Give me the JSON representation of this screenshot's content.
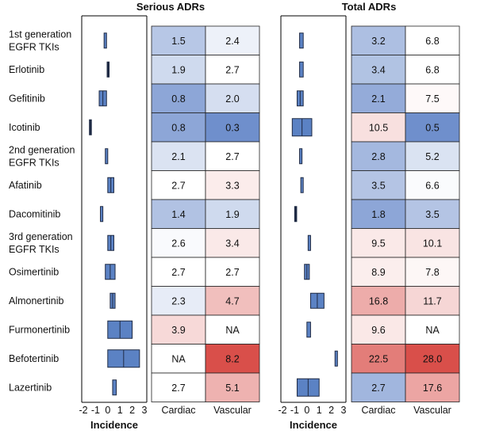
{
  "chart_data": {
    "type": "heatmap",
    "rows": [
      "1st generation\nEGFR TKIs",
      "Erlotinib",
      "Gefitinib",
      "Icotinib",
      "2nd generation\nEGFR TKIs",
      "Afatinib",
      "Dacomitinib",
      "3rd generation\nEGFR TKIs",
      "Osimertinib",
      "Almonertinib",
      "Furmonertinib",
      "Befotertinib",
      "Lazertinib"
    ],
    "panels": [
      {
        "title": "Serious ADRs",
        "columns": [
          "Cardiac",
          "Vascular"
        ],
        "values": [
          [
            "1.5",
            "2.4"
          ],
          [
            "1.9",
            "2.7"
          ],
          [
            "0.8",
            "2.0"
          ],
          [
            "0.8",
            "0.3"
          ],
          [
            "2.1",
            "2.7"
          ],
          [
            "2.7",
            "3.3"
          ],
          [
            "1.4",
            "1.9"
          ],
          [
            "2.6",
            "3.4"
          ],
          [
            "2.7",
            "2.7"
          ],
          [
            "2.3",
            "4.7"
          ],
          [
            "3.9",
            "NA"
          ],
          [
            "NA",
            "8.2"
          ],
          [
            "2.7",
            "5.1"
          ]
        ],
        "incidence": [
          [
            -0.3,
            -0.1
          ],
          [
            -0.05,
            0.05
          ],
          [
            -0.7,
            -0.1
          ],
          [
            -1.5,
            -1.4
          ],
          [
            -0.2,
            0.0
          ],
          [
            0.0,
            0.5
          ],
          [
            -0.6,
            -0.4
          ],
          [
            0.0,
            0.5
          ],
          [
            -0.2,
            0.6
          ],
          [
            0.2,
            0.6
          ],
          [
            0.0,
            2.0
          ],
          [
            0.0,
            2.6
          ],
          [
            0.4,
            0.7
          ]
        ],
        "xlabel": "Incidence",
        "xlim": [
          -2,
          3
        ],
        "xticks": [
          "-2",
          "-1",
          "0",
          "1",
          "2",
          "3"
        ]
      },
      {
        "title": "Total ADRs",
        "columns": [
          "Cardiac",
          "Vascular"
        ],
        "values": [
          [
            "3.2",
            "6.8"
          ],
          [
            "3.4",
            "6.8"
          ],
          [
            "2.1",
            "7.5"
          ],
          [
            "10.5",
            "0.5"
          ],
          [
            "2.8",
            "5.2"
          ],
          [
            "3.5",
            "6.6"
          ],
          [
            "1.8",
            "3.5"
          ],
          [
            "9.5",
            "10.1"
          ],
          [
            "8.9",
            "7.8"
          ],
          [
            "16.8",
            "11.7"
          ],
          [
            "9.6",
            "NA"
          ],
          [
            "22.5",
            "28.0"
          ],
          [
            "2.7",
            "17.6"
          ]
        ],
        "incidence": [
          [
            -0.6,
            -0.3
          ],
          [
            -0.6,
            -0.3
          ],
          [
            -0.8,
            -0.3
          ],
          [
            -1.2,
            0.4
          ],
          [
            -0.6,
            -0.4
          ],
          [
            -0.5,
            -0.3
          ],
          [
            -1.0,
            -0.9
          ],
          [
            0.1,
            0.3
          ],
          [
            -0.2,
            0.2
          ],
          [
            0.3,
            1.4
          ],
          [
            0.0,
            0.3
          ],
          [
            2.3,
            2.5
          ],
          [
            -0.8,
            1.0
          ]
        ],
        "xlabel": "Incidence",
        "xlim": [
          -2,
          3
        ],
        "xticks": [
          "-2",
          "-1",
          "0",
          "1",
          "2",
          "3"
        ]
      }
    ],
    "colors": {
      "box_fill": "#5b82c4",
      "box_stroke": "#1f2a44",
      "low": "#6f8fcc",
      "mid": "#ffffff",
      "high": "#d94f4a"
    }
  }
}
